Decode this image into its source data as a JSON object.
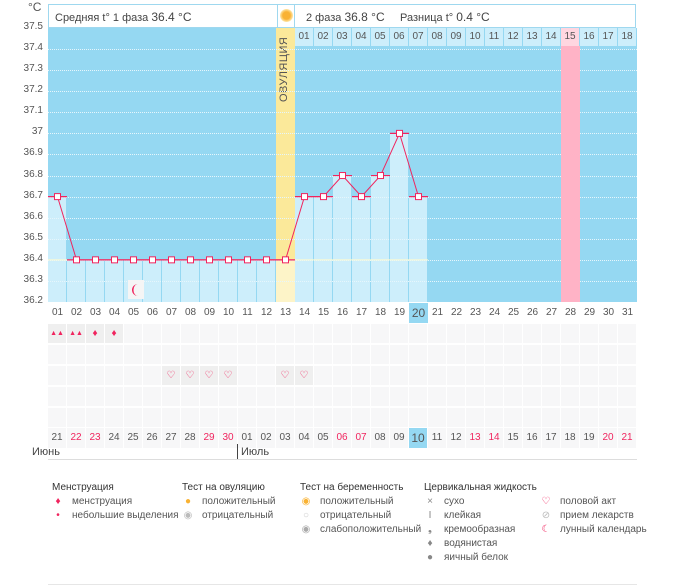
{
  "unit": "°C",
  "header": {
    "phase1_label": "Средняя t° 1 фаза",
    "phase1_value": "36.4 °C",
    "phase2_label": "2 фаза",
    "phase2_value": "36.8 °C",
    "diff_label": "Разница t°",
    "diff_value": "0.4 °C"
  },
  "ovulation_label": "ОВУЛЯЦИЯ",
  "colors": {
    "chart_bg": "#95d8f2",
    "bar": "#cdeefb",
    "line": "#f0245e",
    "ovulation": "#fbe99a",
    "highlight": "#ffb3c6",
    "weekend": "#f0245e"
  },
  "chart_data": {
    "type": "line",
    "ylabel": "°C",
    "ylim": [
      36.2,
      37.5
    ],
    "yticks": [
      "37.5",
      "37.4",
      "37.3",
      "37.2",
      "37.1",
      "37",
      "36.9",
      "36.8",
      "36.7",
      "36.6",
      "36.5",
      "36.4",
      "36.3",
      "36.2"
    ],
    "cycle_days": [
      "01",
      "02",
      "03",
      "04",
      "05",
      "06",
      "07",
      "08",
      "09",
      "10",
      "11",
      "12",
      "13",
      "14",
      "15",
      "16",
      "17",
      "18",
      "19",
      "20",
      "21",
      "22",
      "23",
      "24",
      "25",
      "26",
      "27",
      "28",
      "29",
      "30",
      "31"
    ],
    "temps": [
      36.7,
      36.4,
      36.4,
      36.4,
      36.4,
      36.4,
      36.4,
      36.4,
      36.4,
      36.4,
      36.4,
      36.4,
      36.4,
      36.7,
      36.7,
      36.8,
      36.7,
      36.8,
      37.0,
      36.7
    ],
    "coverline": 36.4,
    "ovulation_day": 13,
    "today_day": 20,
    "highlight_day": 28,
    "phase2_days": [
      "01",
      "02",
      "03",
      "04",
      "05",
      "06",
      "07",
      "08",
      "09",
      "10",
      "11",
      "12",
      "13",
      "14",
      "15",
      "16",
      "17",
      "18"
    ]
  },
  "dates": [
    {
      "d": "21",
      "w": false
    },
    {
      "d": "22",
      "w": true
    },
    {
      "d": "23",
      "w": true
    },
    {
      "d": "24",
      "w": false
    },
    {
      "d": "25",
      "w": false
    },
    {
      "d": "26",
      "w": false
    },
    {
      "d": "27",
      "w": false
    },
    {
      "d": "28",
      "w": false
    },
    {
      "d": "29",
      "w": true
    },
    {
      "d": "30",
      "w": true
    },
    {
      "d": "01",
      "w": false
    },
    {
      "d": "02",
      "w": false
    },
    {
      "d": "03",
      "w": false
    },
    {
      "d": "04",
      "w": false
    },
    {
      "d": "05",
      "w": false
    },
    {
      "d": "06",
      "w": true
    },
    {
      "d": "07",
      "w": true
    },
    {
      "d": "08",
      "w": false
    },
    {
      "d": "09",
      "w": false
    },
    {
      "d": "10",
      "w": false
    },
    {
      "d": "11",
      "w": false
    },
    {
      "d": "12",
      "w": false
    },
    {
      "d": "13",
      "w": true
    },
    {
      "d": "14",
      "w": true
    },
    {
      "d": "15",
      "w": false
    },
    {
      "d": "16",
      "w": false
    },
    {
      "d": "17",
      "w": false
    },
    {
      "d": "18",
      "w": false
    },
    {
      "d": "19",
      "w": false
    },
    {
      "d": "20",
      "w": true
    },
    {
      "d": "21",
      "w": true
    }
  ],
  "months": [
    "Июнь",
    "Июль"
  ],
  "marks": {
    "menstruation_heavy": [
      1,
      2
    ],
    "menstruation_light": [
      3,
      4
    ],
    "intercourse": [
      7,
      8,
      9,
      10,
      13,
      14
    ],
    "moon": [
      5
    ]
  },
  "legend": {
    "menstruation": {
      "title": "Менструация",
      "items": [
        "менструация",
        "небольшие выделения"
      ]
    },
    "ovulation_test": {
      "title": "Тест на овуляцию",
      "items": [
        "положительный",
        "отрицательный"
      ]
    },
    "pregnancy_test": {
      "title": "Тест на беременность",
      "items": [
        "положительный",
        "отрицательный",
        "слабоположительный"
      ]
    },
    "cervical": {
      "title": "Цервикальная жидкость",
      "items": [
        "сухо",
        "клейкая",
        "кремообразная",
        "водянистая",
        "яичный белок"
      ]
    },
    "other": {
      "items": [
        "половой акт",
        "прием лекарств",
        "лунный календарь"
      ]
    }
  }
}
